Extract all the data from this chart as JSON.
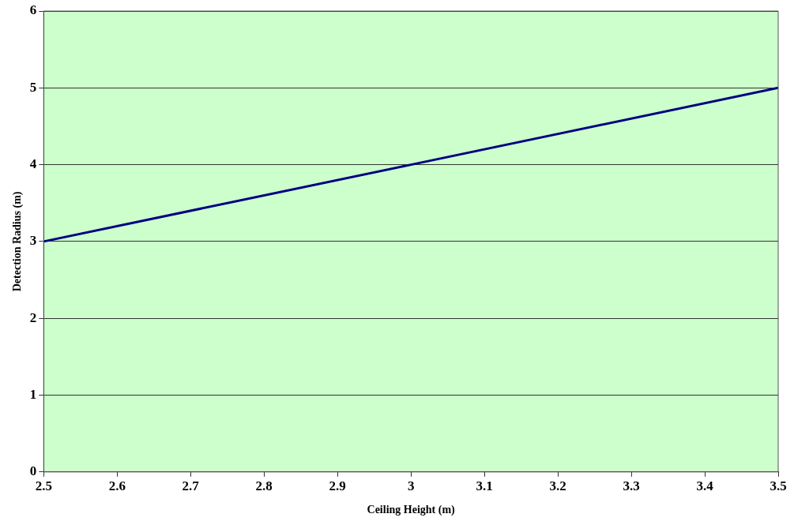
{
  "chart_data": {
    "type": "line",
    "xlabel": "Ceiling Height (m)",
    "ylabel": "Detection Radius (m)",
    "x": [
      2.5,
      3,
      3.5
    ],
    "series": [
      {
        "color": "#000080",
        "values": [
          3,
          4,
          5
        ]
      }
    ],
    "xlim": [
      2.5,
      3.5
    ],
    "xticks": [
      2.5,
      2.6,
      2.7,
      2.8,
      2.9,
      3,
      3.1,
      3.2,
      3.3,
      3.4,
      3.5
    ],
    "ylim": [
      0,
      6
    ],
    "yticks": [
      0,
      1,
      2,
      3,
      4,
      5,
      6
    ],
    "grid": "y",
    "legend": false,
    "marker": "none",
    "line_style": "solid"
  }
}
